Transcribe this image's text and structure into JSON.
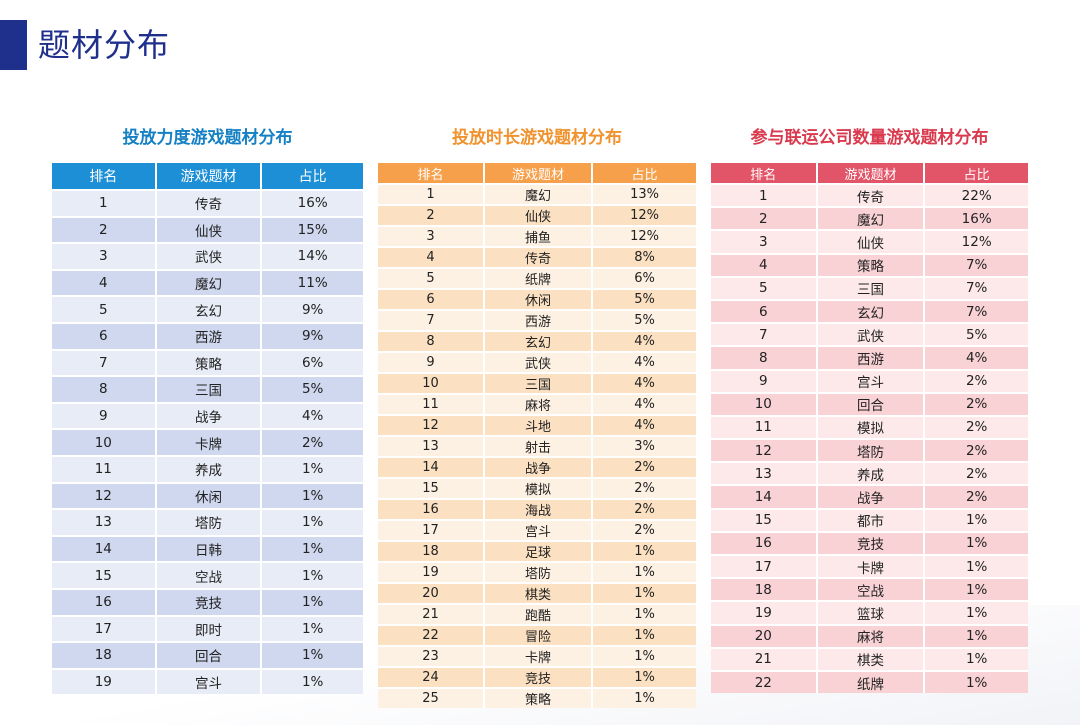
{
  "page": {
    "title": "题材分布"
  },
  "tables": {
    "t1": {
      "caption": "投放力度游戏题材分布",
      "headers": [
        "排名",
        "游戏题材",
        "占比"
      ],
      "rows": [
        [
          "1",
          "传奇",
          "16%"
        ],
        [
          "2",
          "仙侠",
          "15%"
        ],
        [
          "3",
          "武侠",
          "14%"
        ],
        [
          "4",
          "魔幻",
          "11%"
        ],
        [
          "5",
          "玄幻",
          "9%"
        ],
        [
          "6",
          "西游",
          "9%"
        ],
        [
          "7",
          "策略",
          "6%"
        ],
        [
          "8",
          "三国",
          "5%"
        ],
        [
          "9",
          "战争",
          "4%"
        ],
        [
          "10",
          "卡牌",
          "2%"
        ],
        [
          "11",
          "养成",
          "1%"
        ],
        [
          "12",
          "休闲",
          "1%"
        ],
        [
          "13",
          "塔防",
          "1%"
        ],
        [
          "14",
          "日韩",
          "1%"
        ],
        [
          "15",
          "空战",
          "1%"
        ],
        [
          "16",
          "竞技",
          "1%"
        ],
        [
          "17",
          "即时",
          "1%"
        ],
        [
          "18",
          "回合",
          "1%"
        ],
        [
          "19",
          "宫斗",
          "1%"
        ]
      ],
      "colors": {
        "header": "#1c8fd6",
        "caption": "#1580c4"
      }
    },
    "t2": {
      "caption": "投放时长游戏题材分布",
      "headers": [
        "排名",
        "游戏题材",
        "占比"
      ],
      "rows": [
        [
          "1",
          "魔幻",
          "13%"
        ],
        [
          "2",
          "仙侠",
          "12%"
        ],
        [
          "3",
          "捕鱼",
          "12%"
        ],
        [
          "4",
          "传奇",
          "8%"
        ],
        [
          "5",
          "纸牌",
          "6%"
        ],
        [
          "6",
          "休闲",
          "5%"
        ],
        [
          "7",
          "西游",
          "5%"
        ],
        [
          "8",
          "玄幻",
          "4%"
        ],
        [
          "9",
          "武侠",
          "4%"
        ],
        [
          "10",
          "三国",
          "4%"
        ],
        [
          "11",
          "麻将",
          "4%"
        ],
        [
          "12",
          "斗地",
          "4%"
        ],
        [
          "13",
          "射击",
          "3%"
        ],
        [
          "14",
          "战争",
          "2%"
        ],
        [
          "15",
          "模拟",
          "2%"
        ],
        [
          "16",
          "海战",
          "2%"
        ],
        [
          "17",
          "宫斗",
          "2%"
        ],
        [
          "18",
          "足球",
          "1%"
        ],
        [
          "19",
          "塔防",
          "1%"
        ],
        [
          "20",
          "棋类",
          "1%"
        ],
        [
          "21",
          "跑酷",
          "1%"
        ],
        [
          "22",
          "冒险",
          "1%"
        ],
        [
          "23",
          "卡牌",
          "1%"
        ],
        [
          "24",
          "竞技",
          "1%"
        ],
        [
          "25",
          "策略",
          "1%"
        ]
      ],
      "colors": {
        "header": "#f6a04b",
        "caption": "#f0922e"
      }
    },
    "t3": {
      "caption": "参与联运公司数量游戏题材分布",
      "headers": [
        "排名",
        "游戏题材",
        "占比"
      ],
      "rows": [
        [
          "1",
          "传奇",
          "22%"
        ],
        [
          "2",
          "魔幻",
          "16%"
        ],
        [
          "3",
          "仙侠",
          "12%"
        ],
        [
          "4",
          "策略",
          "7%"
        ],
        [
          "5",
          "三国",
          "7%"
        ],
        [
          "6",
          "玄幻",
          "7%"
        ],
        [
          "7",
          "武侠",
          "5%"
        ],
        [
          "8",
          "西游",
          "4%"
        ],
        [
          "9",
          "宫斗",
          "2%"
        ],
        [
          "10",
          "回合",
          "2%"
        ],
        [
          "11",
          "模拟",
          "2%"
        ],
        [
          "12",
          "塔防",
          "2%"
        ],
        [
          "13",
          "养成",
          "2%"
        ],
        [
          "14",
          "战争",
          "2%"
        ],
        [
          "15",
          "都市",
          "1%"
        ],
        [
          "16",
          "竞技",
          "1%"
        ],
        [
          "17",
          "卡牌",
          "1%"
        ],
        [
          "18",
          "空战",
          "1%"
        ],
        [
          "19",
          "篮球",
          "1%"
        ],
        [
          "20",
          "麻将",
          "1%"
        ],
        [
          "21",
          "棋类",
          "1%"
        ],
        [
          "22",
          "纸牌",
          "1%"
        ]
      ],
      "colors": {
        "header": "#e25467",
        "caption": "#d93a4e"
      }
    }
  }
}
